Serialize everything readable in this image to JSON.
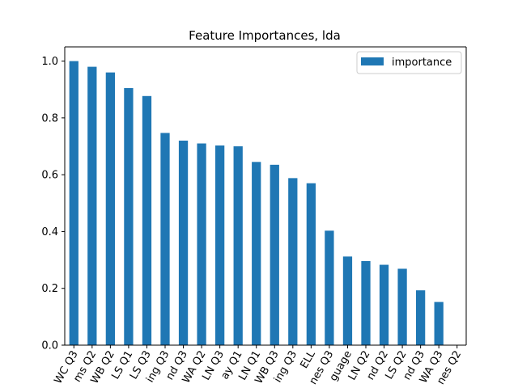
{
  "chart_data": {
    "type": "bar",
    "title": "Feature Importances, lda",
    "xlabel": "",
    "ylabel": "",
    "ylim": [
      0.0,
      1.05
    ],
    "yticks": [
      "0.0",
      "0.2",
      "0.4",
      "0.6",
      "0.8",
      "1.0"
    ],
    "ytick_values": [
      0.0,
      0.2,
      0.4,
      0.6,
      0.8,
      1.0
    ],
    "legend": {
      "position": "top-right",
      "entries": [
        "importance"
      ]
    },
    "grid": false,
    "colors": {
      "bar": "#1f77b4",
      "axis": "#000000",
      "legend_border": "#cccccc"
    },
    "categories": [
      "WC Q3",
      "ms Q2",
      "WB Q2",
      "LS Q1",
      "LS Q3",
      "ing Q3",
      "nd Q3",
      "WA Q2",
      "LN Q3",
      "ay Q1",
      "LN Q1",
      "WB Q3",
      "ing Q3",
      "ELL",
      "nes Q3",
      "guage",
      "LN Q2",
      "nd Q2",
      "LS Q2",
      "nd Q3",
      "WA Q3",
      "nes Q2"
    ],
    "series": [
      {
        "name": "importance",
        "values": [
          1.0,
          0.98,
          0.96,
          0.905,
          0.877,
          0.747,
          0.72,
          0.71,
          0.703,
          0.7,
          0.645,
          0.635,
          0.588,
          0.57,
          0.403,
          0.312,
          0.296,
          0.283,
          0.269,
          0.193,
          0.152,
          0.0
        ]
      }
    ]
  }
}
